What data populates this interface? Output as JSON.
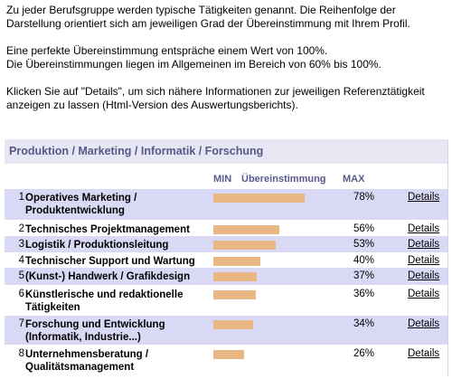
{
  "intro": {
    "p1": "Zu jeder Berufsgruppe werden typische Tätigkeiten genannt. Die Reihenfolge der Darstellung orientiert sich am jeweiligen Grad der Übereinstimmung mit Ihrem Profil.",
    "p2_line1": "Eine perfekte Übereinstimmung entspräche einem Wert von 100%.",
    "p2_line2": "Die Übereinstimmungen liegen im Allgemeinen im Bereich von 60% bis 100%.",
    "p3": "Klicken Sie auf \"Details\", um sich nähere Informationen zur jeweiligen Referenztätigkeit anzeigen zu lassen (Html-Version des Auswertungsberichts)."
  },
  "panel": {
    "title": "Produktion / Marketing / Informatik / Forschung",
    "col_min": "MIN",
    "col_match": "Übereinstimmung",
    "col_max": "MAX"
  },
  "colors": {
    "bar": "#e8b784",
    "row_shade": "#d9d9f5",
    "header_bg": "#e7e7f3",
    "header_text": "#58588a"
  },
  "rows": [
    {
      "num": "1",
      "name": "Operatives Marketing / Produktentwicklung",
      "pct": "78%",
      "value": 78,
      "details": "Details",
      "shaded": true
    },
    {
      "num": "2",
      "name": "Technisches Projektmanagement",
      "pct": "56%",
      "value": 56,
      "details": "Details",
      "shaded": false
    },
    {
      "num": "3",
      "name": "Logistik / Produktionsleitung",
      "pct": "53%",
      "value": 53,
      "details": "Details",
      "shaded": true
    },
    {
      "num": "4",
      "name": "Technischer Support und Wartung",
      "pct": "40%",
      "value": 40,
      "details": "Details",
      "shaded": false
    },
    {
      "num": "5",
      "name": "(Kunst-) Handwerk / Grafikdesign",
      "pct": "37%",
      "value": 37,
      "details": "Details",
      "shaded": true
    },
    {
      "num": "6",
      "name": "Künstlerische und redaktionelle Tätigkeiten",
      "pct": "36%",
      "value": 36,
      "details": "Details",
      "shaded": false
    },
    {
      "num": "7",
      "name": "Forschung und Entwicklung (Informatik, Industrie...)",
      "pct": "34%",
      "value": 34,
      "details": "Details",
      "shaded": true
    },
    {
      "num": "8",
      "name": "Unternehmensberatung / Qualitätsmanagement",
      "pct": "26%",
      "value": 26,
      "details": "Details",
      "shaded": false
    }
  ]
}
